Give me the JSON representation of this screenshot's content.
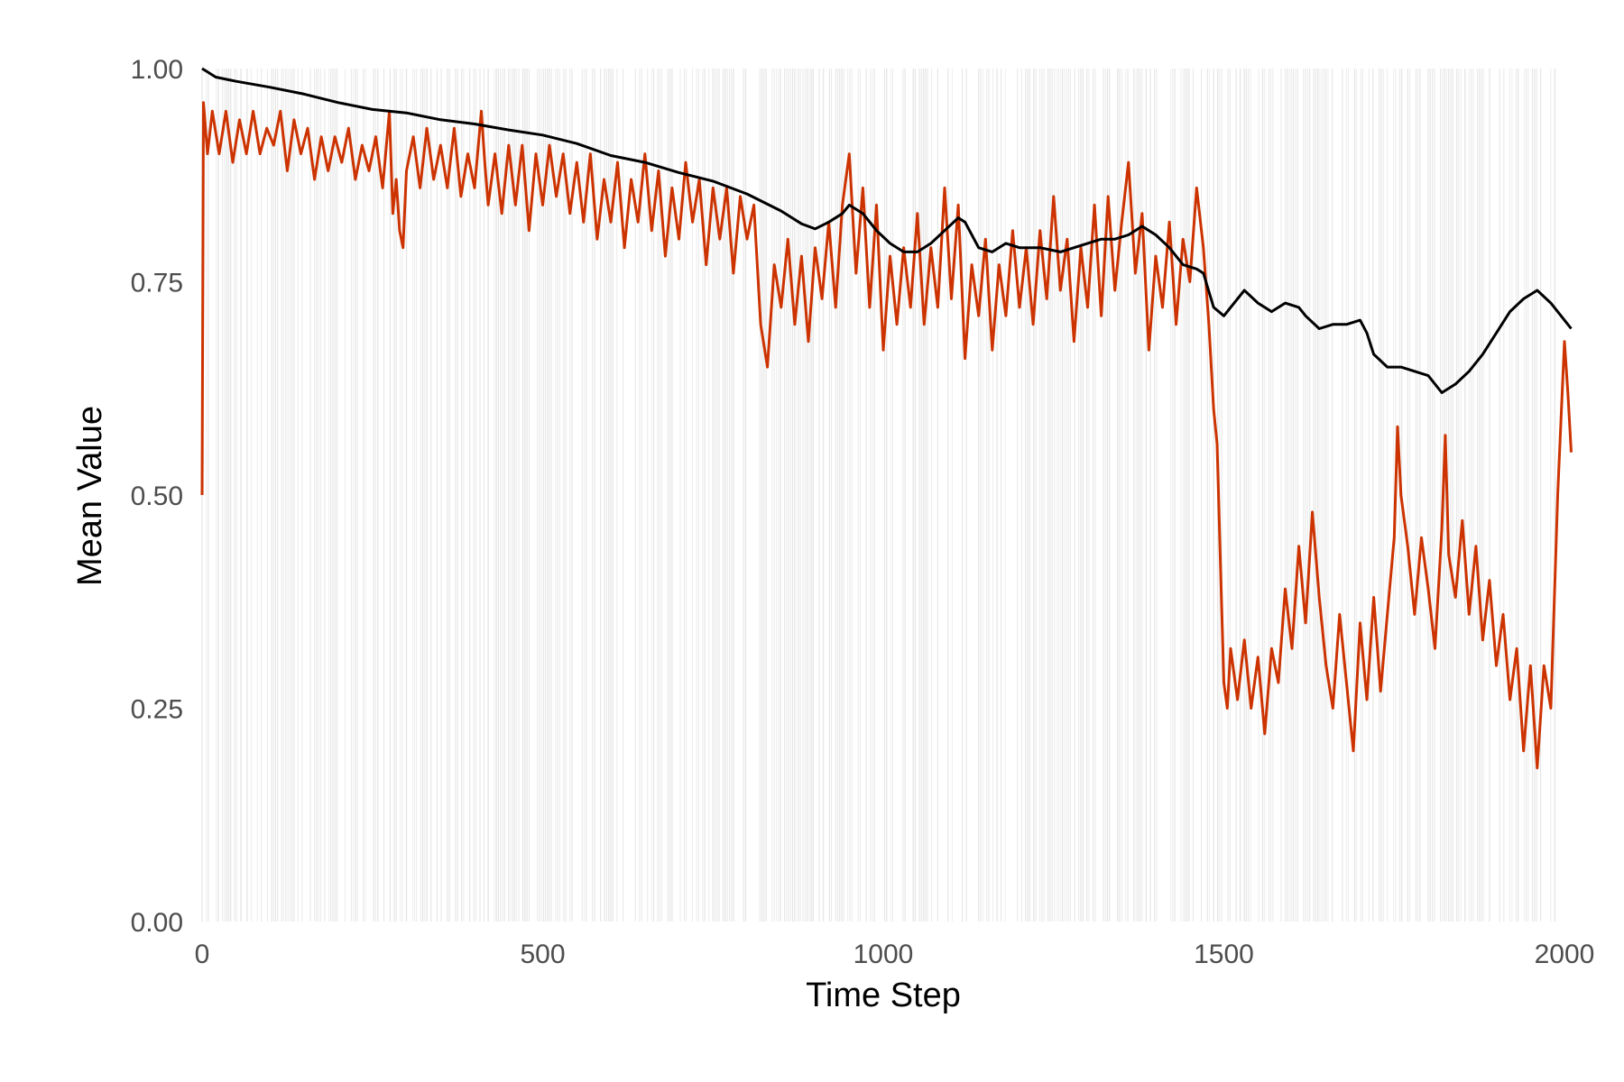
{
  "chart_data": {
    "type": "line",
    "title": "",
    "xlabel": "Time Step",
    "ylabel": "Mean Value",
    "xlim": [
      0,
      2000
    ],
    "ylim": [
      0,
      1
    ],
    "grid": false,
    "background_stripes": true,
    "x_ticks": [
      {
        "value": 0,
        "label": "0"
      },
      {
        "value": 500,
        "label": "500"
      },
      {
        "value": 1000,
        "label": "1000"
      },
      {
        "value": 1500,
        "label": "1500"
      },
      {
        "value": 2000,
        "label": "2000"
      }
    ],
    "y_ticks": [
      {
        "value": 0,
        "label": "0.00"
      },
      {
        "value": 0.25,
        "label": "0.25"
      },
      {
        "value": 0.5,
        "label": "0.50"
      },
      {
        "value": 0.75,
        "label": "0.75"
      },
      {
        "value": 1.0,
        "label": "1.00"
      }
    ],
    "colors": {
      "red_series": "#cc3300",
      "black_series": "#000000",
      "stripe": "#e6e6e6"
    },
    "series": [
      {
        "color": "#cc3300",
        "points": [
          [
            0,
            0.5
          ],
          [
            2,
            0.96
          ],
          [
            8,
            0.9
          ],
          [
            15,
            0.95
          ],
          [
            25,
            0.9
          ],
          [
            35,
            0.95
          ],
          [
            45,
            0.89
          ],
          [
            55,
            0.94
          ],
          [
            65,
            0.9
          ],
          [
            75,
            0.95
          ],
          [
            85,
            0.9
          ],
          [
            95,
            0.93
          ],
          [
            105,
            0.91
          ],
          [
            115,
            0.95
          ],
          [
            125,
            0.88
          ],
          [
            135,
            0.94
          ],
          [
            145,
            0.9
          ],
          [
            155,
            0.93
          ],
          [
            165,
            0.87
          ],
          [
            175,
            0.92
          ],
          [
            185,
            0.88
          ],
          [
            195,
            0.92
          ],
          [
            205,
            0.89
          ],
          [
            215,
            0.93
          ],
          [
            225,
            0.87
          ],
          [
            235,
            0.91
          ],
          [
            245,
            0.88
          ],
          [
            255,
            0.92
          ],
          [
            265,
            0.86
          ],
          [
            275,
            0.95
          ],
          [
            280,
            0.83
          ],
          [
            285,
            0.87
          ],
          [
            290,
            0.81
          ],
          [
            295,
            0.79
          ],
          [
            300,
            0.88
          ],
          [
            310,
            0.92
          ],
          [
            320,
            0.86
          ],
          [
            330,
            0.93
          ],
          [
            340,
            0.87
          ],
          [
            350,
            0.91
          ],
          [
            360,
            0.86
          ],
          [
            370,
            0.93
          ],
          [
            380,
            0.85
          ],
          [
            390,
            0.9
          ],
          [
            400,
            0.86
          ],
          [
            410,
            0.95
          ],
          [
            415,
            0.89
          ],
          [
            420,
            0.84
          ],
          [
            430,
            0.9
          ],
          [
            440,
            0.83
          ],
          [
            450,
            0.91
          ],
          [
            460,
            0.84
          ],
          [
            470,
            0.91
          ],
          [
            480,
            0.81
          ],
          [
            490,
            0.9
          ],
          [
            500,
            0.84
          ],
          [
            510,
            0.91
          ],
          [
            520,
            0.85
          ],
          [
            530,
            0.9
          ],
          [
            540,
            0.83
          ],
          [
            550,
            0.89
          ],
          [
            560,
            0.82
          ],
          [
            570,
            0.9
          ],
          [
            580,
            0.8
          ],
          [
            590,
            0.87
          ],
          [
            600,
            0.82
          ],
          [
            610,
            0.89
          ],
          [
            620,
            0.79
          ],
          [
            630,
            0.87
          ],
          [
            640,
            0.82
          ],
          [
            650,
            0.9
          ],
          [
            660,
            0.81
          ],
          [
            670,
            0.88
          ],
          [
            680,
            0.78
          ],
          [
            690,
            0.86
          ],
          [
            700,
            0.8
          ],
          [
            710,
            0.89
          ],
          [
            720,
            0.82
          ],
          [
            730,
            0.87
          ],
          [
            740,
            0.77
          ],
          [
            750,
            0.86
          ],
          [
            760,
            0.8
          ],
          [
            770,
            0.86
          ],
          [
            780,
            0.76
          ],
          [
            790,
            0.85
          ],
          [
            800,
            0.8
          ],
          [
            810,
            0.84
          ],
          [
            820,
            0.7
          ],
          [
            830,
            0.65
          ],
          [
            840,
            0.77
          ],
          [
            850,
            0.72
          ],
          [
            860,
            0.8
          ],
          [
            870,
            0.7
          ],
          [
            880,
            0.78
          ],
          [
            890,
            0.68
          ],
          [
            900,
            0.79
          ],
          [
            910,
            0.73
          ],
          [
            920,
            0.82
          ],
          [
            930,
            0.72
          ],
          [
            940,
            0.84
          ],
          [
            950,
            0.9
          ],
          [
            960,
            0.76
          ],
          [
            970,
            0.86
          ],
          [
            980,
            0.72
          ],
          [
            990,
            0.84
          ],
          [
            1000,
            0.67
          ],
          [
            1010,
            0.78
          ],
          [
            1020,
            0.7
          ],
          [
            1030,
            0.79
          ],
          [
            1040,
            0.72
          ],
          [
            1050,
            0.83
          ],
          [
            1060,
            0.7
          ],
          [
            1070,
            0.79
          ],
          [
            1080,
            0.72
          ],
          [
            1090,
            0.86
          ],
          [
            1100,
            0.73
          ],
          [
            1110,
            0.84
          ],
          [
            1120,
            0.66
          ],
          [
            1130,
            0.77
          ],
          [
            1140,
            0.71
          ],
          [
            1150,
            0.8
          ],
          [
            1160,
            0.67
          ],
          [
            1170,
            0.77
          ],
          [
            1180,
            0.71
          ],
          [
            1190,
            0.81
          ],
          [
            1200,
            0.72
          ],
          [
            1210,
            0.79
          ],
          [
            1220,
            0.7
          ],
          [
            1230,
            0.81
          ],
          [
            1240,
            0.73
          ],
          [
            1250,
            0.85
          ],
          [
            1260,
            0.74
          ],
          [
            1270,
            0.8
          ],
          [
            1280,
            0.68
          ],
          [
            1290,
            0.79
          ],
          [
            1300,
            0.72
          ],
          [
            1310,
            0.84
          ],
          [
            1320,
            0.71
          ],
          [
            1330,
            0.85
          ],
          [
            1340,
            0.74
          ],
          [
            1350,
            0.82
          ],
          [
            1360,
            0.89
          ],
          [
            1370,
            0.76
          ],
          [
            1380,
            0.83
          ],
          [
            1390,
            0.67
          ],
          [
            1400,
            0.78
          ],
          [
            1410,
            0.72
          ],
          [
            1420,
            0.82
          ],
          [
            1430,
            0.7
          ],
          [
            1440,
            0.8
          ],
          [
            1450,
            0.75
          ],
          [
            1460,
            0.86
          ],
          [
            1470,
            0.79
          ],
          [
            1478,
            0.7
          ],
          [
            1485,
            0.6
          ],
          [
            1490,
            0.56
          ],
          [
            1495,
            0.42
          ],
          [
            1500,
            0.28
          ],
          [
            1505,
            0.25
          ],
          [
            1510,
            0.32
          ],
          [
            1520,
            0.26
          ],
          [
            1530,
            0.33
          ],
          [
            1540,
            0.25
          ],
          [
            1550,
            0.31
          ],
          [
            1560,
            0.22
          ],
          [
            1570,
            0.32
          ],
          [
            1580,
            0.28
          ],
          [
            1590,
            0.39
          ],
          [
            1600,
            0.32
          ],
          [
            1610,
            0.44
          ],
          [
            1620,
            0.35
          ],
          [
            1630,
            0.48
          ],
          [
            1640,
            0.38
          ],
          [
            1650,
            0.3
          ],
          [
            1660,
            0.25
          ],
          [
            1670,
            0.36
          ],
          [
            1680,
            0.28
          ],
          [
            1690,
            0.2
          ],
          [
            1700,
            0.35
          ],
          [
            1710,
            0.26
          ],
          [
            1720,
            0.38
          ],
          [
            1730,
            0.27
          ],
          [
            1740,
            0.36
          ],
          [
            1750,
            0.45
          ],
          [
            1755,
            0.58
          ],
          [
            1760,
            0.5
          ],
          [
            1770,
            0.44
          ],
          [
            1780,
            0.36
          ],
          [
            1790,
            0.45
          ],
          [
            1800,
            0.39
          ],
          [
            1810,
            0.32
          ],
          [
            1820,
            0.46
          ],
          [
            1825,
            0.57
          ],
          [
            1830,
            0.43
          ],
          [
            1840,
            0.38
          ],
          [
            1850,
            0.47
          ],
          [
            1860,
            0.36
          ],
          [
            1870,
            0.44
          ],
          [
            1880,
            0.33
          ],
          [
            1890,
            0.4
          ],
          [
            1900,
            0.3
          ],
          [
            1910,
            0.36
          ],
          [
            1920,
            0.26
          ],
          [
            1930,
            0.32
          ],
          [
            1940,
            0.2
          ],
          [
            1950,
            0.3
          ],
          [
            1960,
            0.18
          ],
          [
            1970,
            0.3
          ],
          [
            1980,
            0.25
          ],
          [
            1990,
            0.5
          ],
          [
            2000,
            0.68
          ],
          [
            2005,
            0.62
          ],
          [
            2010,
            0.55
          ]
        ]
      },
      {
        "color": "#000000",
        "points": [
          [
            0,
            1.0
          ],
          [
            20,
            0.99
          ],
          [
            50,
            0.985
          ],
          [
            100,
            0.978
          ],
          [
            150,
            0.97
          ],
          [
            200,
            0.96
          ],
          [
            250,
            0.952
          ],
          [
            300,
            0.948
          ],
          [
            350,
            0.94
          ],
          [
            400,
            0.935
          ],
          [
            450,
            0.928
          ],
          [
            500,
            0.922
          ],
          [
            550,
            0.912
          ],
          [
            600,
            0.898
          ],
          [
            650,
            0.89
          ],
          [
            700,
            0.878
          ],
          [
            750,
            0.868
          ],
          [
            800,
            0.853
          ],
          [
            850,
            0.833
          ],
          [
            880,
            0.818
          ],
          [
            900,
            0.812
          ],
          [
            920,
            0.82
          ],
          [
            940,
            0.83
          ],
          [
            950,
            0.84
          ],
          [
            970,
            0.83
          ],
          [
            990,
            0.81
          ],
          [
            1010,
            0.795
          ],
          [
            1030,
            0.785
          ],
          [
            1050,
            0.785
          ],
          [
            1070,
            0.795
          ],
          [
            1090,
            0.81
          ],
          [
            1110,
            0.825
          ],
          [
            1120,
            0.82
          ],
          [
            1140,
            0.79
          ],
          [
            1160,
            0.785
          ],
          [
            1180,
            0.795
          ],
          [
            1200,
            0.79
          ],
          [
            1230,
            0.79
          ],
          [
            1260,
            0.785
          ],
          [
            1300,
            0.795
          ],
          [
            1320,
            0.8
          ],
          [
            1340,
            0.8
          ],
          [
            1360,
            0.805
          ],
          [
            1380,
            0.815
          ],
          [
            1400,
            0.805
          ],
          [
            1420,
            0.79
          ],
          [
            1440,
            0.77
          ],
          [
            1460,
            0.765
          ],
          [
            1470,
            0.76
          ],
          [
            1485,
            0.72
          ],
          [
            1500,
            0.71
          ],
          [
            1510,
            0.72
          ],
          [
            1530,
            0.74
          ],
          [
            1550,
            0.725
          ],
          [
            1570,
            0.715
          ],
          [
            1590,
            0.725
          ],
          [
            1610,
            0.72
          ],
          [
            1620,
            0.71
          ],
          [
            1640,
            0.695
          ],
          [
            1660,
            0.7
          ],
          [
            1680,
            0.7
          ],
          [
            1700,
            0.705
          ],
          [
            1710,
            0.69
          ],
          [
            1720,
            0.665
          ],
          [
            1740,
            0.65
          ],
          [
            1760,
            0.65
          ],
          [
            1780,
            0.645
          ],
          [
            1800,
            0.64
          ],
          [
            1820,
            0.62
          ],
          [
            1840,
            0.63
          ],
          [
            1860,
            0.645
          ],
          [
            1880,
            0.665
          ],
          [
            1900,
            0.69
          ],
          [
            1920,
            0.715
          ],
          [
            1940,
            0.73
          ],
          [
            1960,
            0.74
          ],
          [
            1980,
            0.725
          ],
          [
            2000,
            0.705
          ],
          [
            2010,
            0.695
          ]
        ]
      }
    ]
  }
}
